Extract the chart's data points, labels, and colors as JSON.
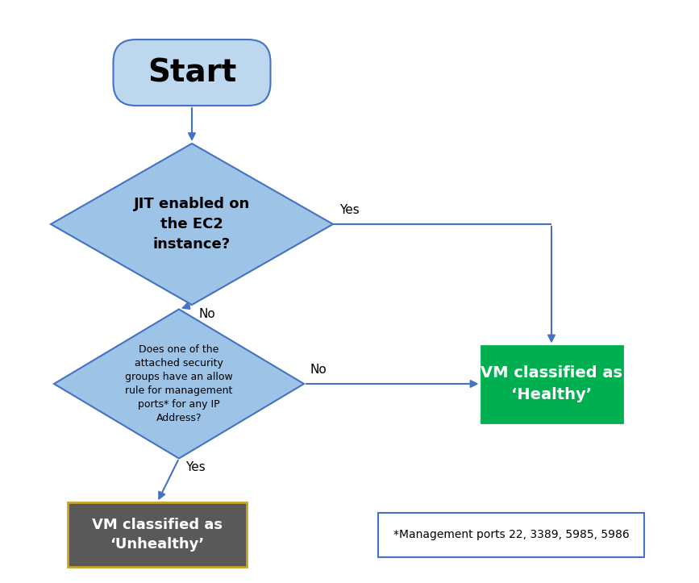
{
  "background_color": "#ffffff",
  "arrow_color": "#4472c4",
  "diamond_color": "#9dc3e6",
  "diamond_edge_color": "#4472c4",
  "start_box_color": "#bdd7ee",
  "start_box_edge_color": "#4472c4",
  "healthy_box_color": "#00b050",
  "healthy_box_edge_color": "#00b050",
  "unhealthy_box_color": "#595959",
  "unhealthy_box_edge_color": "#c9a227",
  "note_box_color": "#ffffff",
  "note_box_edge_color": "#4472c4",
  "start_text": "Start",
  "diamond1_text": "JIT enabled on\nthe EC2\ninstance?",
  "diamond2_text": "Does one of the\nattached security\ngroups have an allow\nrule for management\nports* for any IP\nAddress?",
  "healthy_text": "VM classified as\n‘Healthy’",
  "unhealthy_text": "VM classified as\n‘Unhealthy’",
  "note_text": "*Management ports 22, 3389, 5985, 5986",
  "yes_label": "Yes",
  "no_label1": "No",
  "no_label2": "No",
  "yes_label2": "Yes",
  "fig_width": 8.67,
  "fig_height": 7.23,
  "dpi": 100
}
